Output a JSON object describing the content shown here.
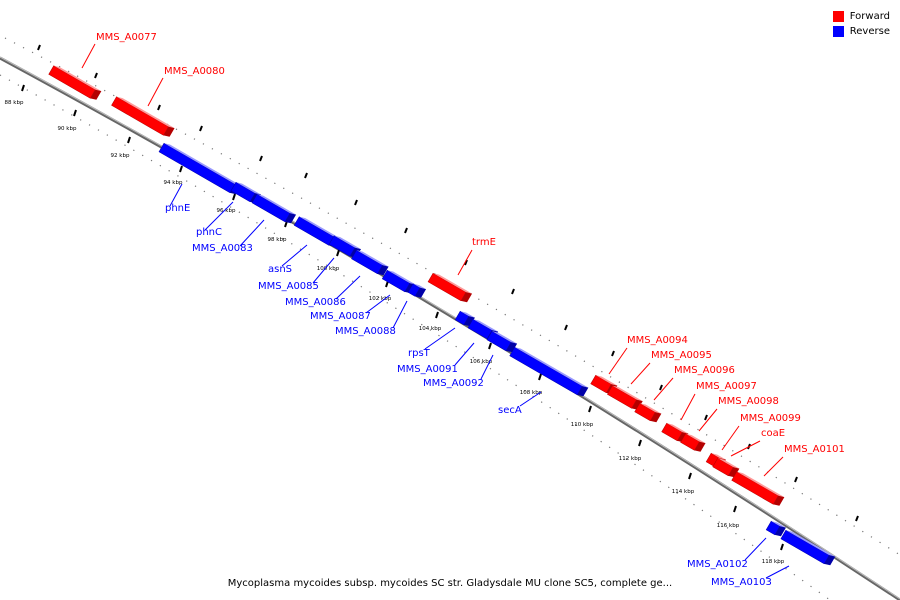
{
  "caption": "Mycoplasma mycoides subsp. mycoides SC str. Gladysdale MU clone SC5, complete ge...",
  "legend": [
    {
      "label": "Forward",
      "color": "#ff0000"
    },
    {
      "label": "Reverse",
      "color": "#0000ff"
    }
  ],
  "colors": {
    "forward": "#ff0000",
    "reverse": "#0000ff",
    "backbone": "#888888"
  },
  "ticks": [
    "88 kbp",
    "90 kbp",
    "92 kbp",
    "94 kbp",
    "96 kbp",
    "98 kbp",
    "100 kbp",
    "102 kbp",
    "104 kbp",
    "106 kbp",
    "108 kbp",
    "110 kbp",
    "112 kbp",
    "114 kbp",
    "116 kbp",
    "118 kbp"
  ],
  "genes": [
    {
      "label": "MMS_A0077",
      "strand": "forward"
    },
    {
      "label": "MMS_A0080",
      "strand": "forward"
    },
    {
      "label": "phnE",
      "strand": "reverse"
    },
    {
      "label": "phnC",
      "strand": "reverse"
    },
    {
      "label": "MMS_A0083",
      "strand": "reverse"
    },
    {
      "label": "asnS",
      "strand": "reverse"
    },
    {
      "label": "MMS_A0085",
      "strand": "reverse"
    },
    {
      "label": "MMS_A0086",
      "strand": "reverse"
    },
    {
      "label": "MMS_A0087",
      "strand": "reverse"
    },
    {
      "label": "MMS_A0088",
      "strand": "reverse"
    },
    {
      "label": "trmE",
      "strand": "forward"
    },
    {
      "label": "rpsT",
      "strand": "reverse"
    },
    {
      "label": "MMS_A0091",
      "strand": "reverse"
    },
    {
      "label": "MMS_A0092",
      "strand": "reverse"
    },
    {
      "label": "secA",
      "strand": "reverse"
    },
    {
      "label": "MMS_A0094",
      "strand": "forward"
    },
    {
      "label": "MMS_A0095",
      "strand": "forward"
    },
    {
      "label": "MMS_A0096",
      "strand": "forward"
    },
    {
      "label": "MMS_A0097",
      "strand": "forward"
    },
    {
      "label": "MMS_A0098",
      "strand": "forward"
    },
    {
      "label": "MMS_A0099",
      "strand": "forward"
    },
    {
      "label": "coaE",
      "strand": "forward"
    },
    {
      "label": "MMS_A0101",
      "strand": "forward"
    },
    {
      "label": "MMS_A0102",
      "strand": "reverse"
    },
    {
      "label": "MMS_A0103",
      "strand": "reverse"
    }
  ]
}
